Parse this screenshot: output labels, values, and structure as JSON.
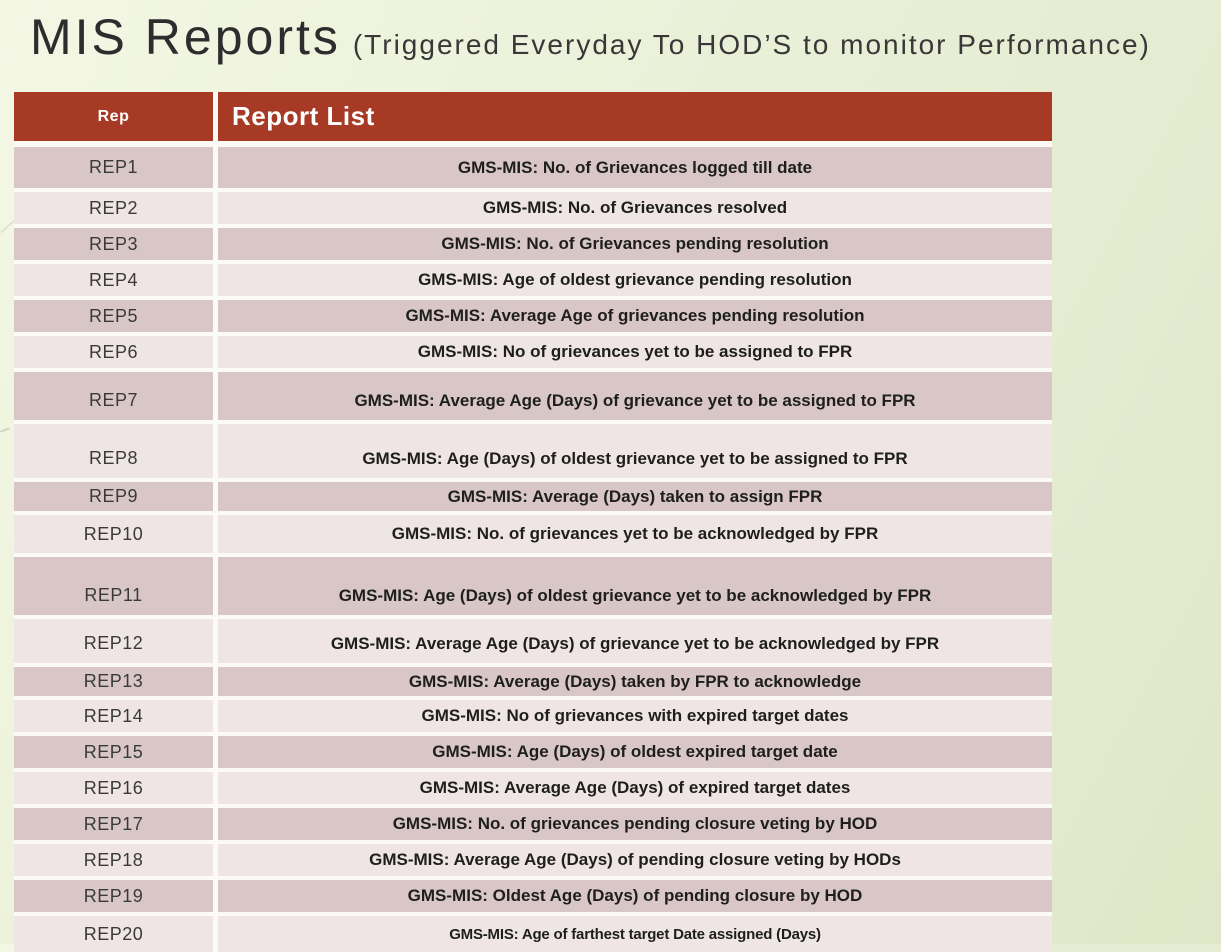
{
  "slide": {
    "title": "MIS Reports",
    "subtitle": "(Triggered Everyday To HOD’S to monitor Performance)"
  },
  "table": {
    "headers": {
      "rep": "Rep",
      "report_list": "Report List"
    },
    "rows": [
      {
        "rep": "REP1",
        "report": "GMS-MIS: No. of Grievances logged till date"
      },
      {
        "rep": "REP2",
        "report": "GMS-MIS: No. of Grievances resolved"
      },
      {
        "rep": "REP3",
        "report": "GMS-MIS: No. of Grievances pending resolution"
      },
      {
        "rep": "REP4",
        "report": "GMS-MIS: Age of oldest grievance pending resolution"
      },
      {
        "rep": "REP5",
        "report": "GMS-MIS: Average Age of grievances pending resolution"
      },
      {
        "rep": "REP6",
        "report": "GMS-MIS: No of grievances yet to be assigned to FPR"
      },
      {
        "rep": "REP7",
        "report": "GMS-MIS: Average Age (Days) of grievance yet to be assigned to FPR"
      },
      {
        "rep": "REP8",
        "report": "GMS-MIS: Age (Days) of oldest grievance yet to be assigned to FPR"
      },
      {
        "rep": "REP9",
        "report": "GMS-MIS: Average (Days) taken to assign FPR"
      },
      {
        "rep": "REP10",
        "report": "GMS-MIS: No. of grievances yet to be acknowledged by FPR"
      },
      {
        "rep": "REP11",
        "report": "GMS-MIS: Age (Days) of oldest grievance yet to be acknowledged by FPR"
      },
      {
        "rep": "REP12",
        "report": "GMS-MIS: Average Age (Days) of grievance yet to be acknowledged by FPR"
      },
      {
        "rep": "REP13",
        "report": "GMS-MIS: Average (Days) taken by FPR to acknowledge"
      },
      {
        "rep": "REP14",
        "report": "GMS-MIS: No of grievances with expired target dates"
      },
      {
        "rep": "REP15",
        "report": "GMS-MIS: Age (Days) of oldest expired target date"
      },
      {
        "rep": "REP16",
        "report": "GMS-MIS: Average Age (Days) of expired target dates"
      },
      {
        "rep": "REP17",
        "report": "GMS-MIS: No. of grievances pending closure veting by HOD"
      },
      {
        "rep": "REP18",
        "report": "GMS-MIS: Average Age (Days) of pending closure veting by HODs"
      },
      {
        "rep": "REP19",
        "report": "GMS-MIS: Oldest Age (Days) of pending closure by HOD"
      },
      {
        "rep": "REP20",
        "report": "GMS-MIS: Age of farthest target Date assigned (Days)"
      }
    ]
  },
  "colors": {
    "header_bg": "#A73A24",
    "row_dark": "#D9C7C7",
    "row_light": "#EFE5E4",
    "gap_color": "#FBFAF7",
    "bg_top": "#F3F7E4",
    "bg_bottom": "#DFE7C9",
    "title_color": "#2D2D2D",
    "report_text": "#1E1E1E"
  }
}
